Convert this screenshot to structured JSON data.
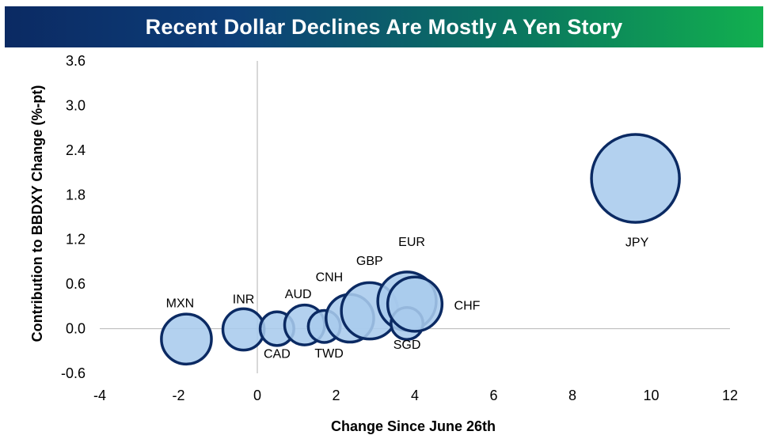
{
  "chart_data": {
    "type": "scatter",
    "variant": "bubble",
    "title": "Recent Dollar Declines Are Mostly A Yen Story",
    "xlabel": "Change Since June 26th",
    "ylabel": "Contribution to BBDXY Change (%-pt)",
    "xlim": [
      -4,
      12
    ],
    "ylim": [
      -0.6,
      3.6
    ],
    "xticks": [
      -4,
      -2,
      0,
      2,
      4,
      6,
      8,
      10,
      12
    ],
    "yticks": [
      -0.6,
      0.0,
      0.6,
      1.2,
      1.8,
      2.4,
      3.0,
      3.6
    ],
    "ytick_labels": [
      "-0.6",
      "0.0",
      "0.6",
      "1.2",
      "1.8",
      "2.4",
      "3.0",
      "3.6"
    ],
    "grid": false,
    "legend": "none",
    "bubble_fill": "#a9cbed",
    "bubble_stroke": "#0b2a63",
    "points": [
      {
        "label": "MXN",
        "x": -1.8,
        "y": -0.14,
        "size": 2.2
      },
      {
        "label": "INR",
        "x": -0.35,
        "y": -0.01,
        "size": 1.5
      },
      {
        "label": "CAD",
        "x": 0.5,
        "y": 0.0,
        "size": 1.0
      },
      {
        "label": "AUD",
        "x": 1.2,
        "y": 0.05,
        "size": 1.4
      },
      {
        "label": "TWD",
        "x": 1.7,
        "y": 0.03,
        "size": 0.9
      },
      {
        "label": "CNH",
        "x": 2.35,
        "y": 0.14,
        "size": 2.0
      },
      {
        "label": "GBP",
        "x": 2.85,
        "y": 0.24,
        "size": 2.8
      },
      {
        "label": "EUR",
        "x": 3.8,
        "y": 0.37,
        "size": 3.0
      },
      {
        "label": "SGD",
        "x": 3.8,
        "y": 0.07,
        "size": 0.9
      },
      {
        "label": "CHF",
        "x": 4.0,
        "y": 0.33,
        "size": 2.6
      },
      {
        "label": "JPY",
        "x": 9.6,
        "y": 2.02,
        "size": 6.8
      }
    ]
  }
}
